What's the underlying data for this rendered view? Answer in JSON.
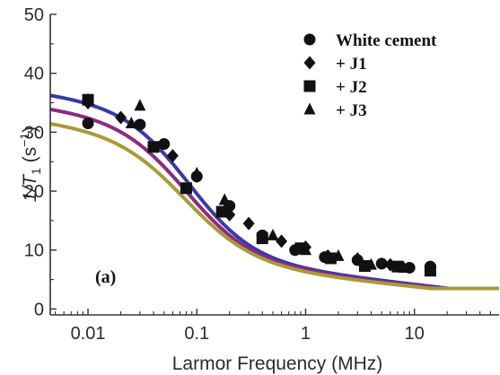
{
  "chart_data": {
    "type": "scatter",
    "panel_label": "(a)",
    "xlabel": "Larmor Frequency (MHz)",
    "ylabel": {
      "prefix": "1/T",
      "sub": "1",
      "unit_open": " (s",
      "sup": "−1",
      "unit_close": ")"
    },
    "x_scale": "log",
    "xlim": [
      0.0045,
      60
    ],
    "ylim": [
      -1,
      50
    ],
    "x_ticks": [
      {
        "value": 0.01,
        "label": "0.01"
      },
      {
        "value": 0.1,
        "label": "0.1"
      },
      {
        "value": 1,
        "label": "1"
      },
      {
        "value": 10,
        "label": "10"
      }
    ],
    "y_ticks": [
      {
        "value": 0,
        "label": "0"
      },
      {
        "value": 10,
        "label": "10"
      },
      {
        "value": 20,
        "label": "20"
      },
      {
        "value": 30,
        "label": "30"
      },
      {
        "value": 40,
        "label": "40"
      },
      {
        "value": 50,
        "label": "50"
      }
    ],
    "grid": false,
    "legend_position": "top-right",
    "series": [
      {
        "name": "White cement",
        "marker": "circle",
        "color": "#111111",
        "points": [
          [
            0.01,
            31.5
          ],
          [
            0.03,
            31.3
          ],
          [
            0.05,
            28.0
          ],
          [
            0.1,
            22.5
          ],
          [
            0.2,
            17.5
          ],
          [
            0.4,
            12.5
          ],
          [
            0.8,
            10.0
          ],
          [
            1.5,
            8.8
          ],
          [
            3.0,
            8.3
          ],
          [
            5.0,
            7.7
          ],
          [
            9.0,
            7.0
          ],
          [
            14.0,
            7.2
          ]
        ]
      },
      {
        "name": "+ J1",
        "marker": "diamond",
        "color": "#111111",
        "points": [
          [
            0.01,
            35.0
          ],
          [
            0.02,
            32.5
          ],
          [
            0.06,
            26.0
          ],
          [
            0.1,
            22.5
          ],
          [
            0.2,
            16.0
          ],
          [
            0.3,
            14.5
          ],
          [
            0.6,
            11.5
          ],
          [
            1.0,
            10.5
          ],
          [
            1.6,
            9.0
          ],
          [
            3.0,
            8.5
          ],
          [
            6.0,
            7.5
          ],
          [
            14.0,
            6.8
          ]
        ]
      },
      {
        "name": "+ J2",
        "marker": "square",
        "color": "#111111",
        "points": [
          [
            0.01,
            35.5
          ],
          [
            0.04,
            27.5
          ],
          [
            0.08,
            20.5
          ],
          [
            0.17,
            16.5
          ],
          [
            0.4,
            12.0
          ],
          [
            0.9,
            10.3
          ],
          [
            1.7,
            8.6
          ],
          [
            3.5,
            7.3
          ],
          [
            7.0,
            7.2
          ],
          [
            14.0,
            6.5
          ]
        ]
      },
      {
        "name": "+ J3",
        "marker": "triangle",
        "color": "#111111",
        "points": [
          [
            0.01,
            35.5
          ],
          [
            0.025,
            31.5
          ],
          [
            0.03,
            34.5
          ],
          [
            0.1,
            23.0
          ],
          [
            0.18,
            18.5
          ],
          [
            0.5,
            12.5
          ],
          [
            1.0,
            10.0
          ],
          [
            2.0,
            9.0
          ],
          [
            4.0,
            7.5
          ],
          [
            8.0,
            7.0
          ],
          [
            14.0,
            6.5
          ]
        ]
      }
    ],
    "fit_curves": [
      {
        "color": "#3a3aa6",
        "plateau": 36.5,
        "tail": 2.1,
        "fc": 0.085,
        "steep": 1.45
      },
      {
        "color": "#8e2a7e",
        "plateau": 34.2,
        "tail": 2.0,
        "fc": 0.08,
        "steep": 1.4
      },
      {
        "color": "#a89b3a",
        "plateau": 31.8,
        "tail": 1.9,
        "fc": 0.078,
        "steep": 1.35
      }
    ]
  }
}
